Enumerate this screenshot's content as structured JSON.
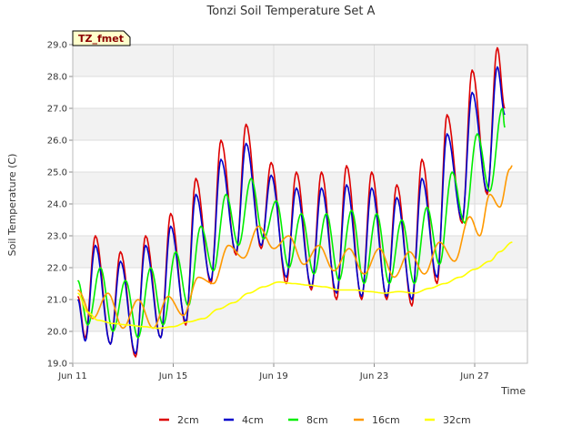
{
  "chart_data": {
    "type": "line",
    "title": "Tonzi Soil Temperature Set A",
    "xlabel": "Time",
    "ylabel": "Soil Temperature (C)",
    "site_badge": "TZ_fmet",
    "x_unit": "day of June",
    "xlim": [
      11,
      29.1
    ],
    "ylim": [
      19.0,
      29.0
    ],
    "x_ticks": [
      {
        "value": 11,
        "label": "Jun 11"
      },
      {
        "value": 15,
        "label": "Jun 15"
      },
      {
        "value": 19,
        "label": "Jun 19"
      },
      {
        "value": 23,
        "label": "Jun 23"
      },
      {
        "value": 27,
        "label": "Jun 27"
      }
    ],
    "y_ticks": [
      "19.0",
      "20.0",
      "21.0",
      "22.0",
      "23.0",
      "24.0",
      "25.0",
      "26.0",
      "27.0",
      "28.0",
      "29.0"
    ],
    "grid": true,
    "legend_position": "bottom",
    "series": [
      {
        "name": "2cm",
        "color": "#dd0000",
        "values": [
          [
            11.2,
            21.1
          ],
          [
            11.5,
            19.8
          ],
          [
            11.9,
            23.0
          ],
          [
            12.5,
            19.6
          ],
          [
            12.9,
            22.5
          ],
          [
            13.5,
            19.2
          ],
          [
            13.9,
            23.0
          ],
          [
            14.5,
            19.8
          ],
          [
            14.9,
            23.7
          ],
          [
            15.5,
            20.2
          ],
          [
            15.9,
            24.8
          ],
          [
            16.5,
            21.5
          ],
          [
            16.9,
            26.0
          ],
          [
            17.5,
            22.4
          ],
          [
            17.9,
            26.5
          ],
          [
            18.5,
            22.6
          ],
          [
            18.9,
            25.3
          ],
          [
            19.5,
            21.5
          ],
          [
            19.9,
            25.0
          ],
          [
            20.5,
            21.3
          ],
          [
            20.9,
            25.0
          ],
          [
            21.5,
            21.0
          ],
          [
            21.9,
            25.2
          ],
          [
            22.5,
            21.0
          ],
          [
            22.9,
            25.0
          ],
          [
            23.5,
            21.0
          ],
          [
            23.9,
            24.6
          ],
          [
            24.5,
            20.8
          ],
          [
            24.9,
            25.4
          ],
          [
            25.5,
            21.5
          ],
          [
            25.9,
            26.8
          ],
          [
            26.5,
            23.4
          ],
          [
            26.9,
            28.2
          ],
          [
            27.5,
            24.3
          ],
          [
            27.9,
            28.9
          ],
          [
            28.2,
            27.0
          ]
        ]
      },
      {
        "name": "4cm",
        "color": "#0000cc",
        "values": [
          [
            11.2,
            21.0
          ],
          [
            11.5,
            19.7
          ],
          [
            11.9,
            22.7
          ],
          [
            12.5,
            19.6
          ],
          [
            12.9,
            22.2
          ],
          [
            13.5,
            19.3
          ],
          [
            13.9,
            22.7
          ],
          [
            14.5,
            19.8
          ],
          [
            14.9,
            23.3
          ],
          [
            15.5,
            20.3
          ],
          [
            15.9,
            24.3
          ],
          [
            16.5,
            21.6
          ],
          [
            16.9,
            25.4
          ],
          [
            17.5,
            22.5
          ],
          [
            17.9,
            25.9
          ],
          [
            18.5,
            22.7
          ],
          [
            18.9,
            24.9
          ],
          [
            19.5,
            21.7
          ],
          [
            19.9,
            24.5
          ],
          [
            20.5,
            21.4
          ],
          [
            20.9,
            24.5
          ],
          [
            21.5,
            21.2
          ],
          [
            21.9,
            24.6
          ],
          [
            22.5,
            21.1
          ],
          [
            22.9,
            24.5
          ],
          [
            23.5,
            21.1
          ],
          [
            23.9,
            24.2
          ],
          [
            24.5,
            21.0
          ],
          [
            24.9,
            24.8
          ],
          [
            25.5,
            21.7
          ],
          [
            25.9,
            26.2
          ],
          [
            26.5,
            23.5
          ],
          [
            26.9,
            27.5
          ],
          [
            27.5,
            24.4
          ],
          [
            27.9,
            28.3
          ],
          [
            28.2,
            26.8
          ]
        ]
      },
      {
        "name": "8cm",
        "color": "#00ee00",
        "values": [
          [
            11.2,
            21.6
          ],
          [
            11.6,
            20.2
          ],
          [
            12.1,
            22.0
          ],
          [
            12.6,
            20.0
          ],
          [
            13.1,
            21.6
          ],
          [
            13.6,
            19.8
          ],
          [
            14.1,
            22.0
          ],
          [
            14.6,
            20.2
          ],
          [
            15.1,
            22.5
          ],
          [
            15.6,
            20.8
          ],
          [
            16.1,
            23.3
          ],
          [
            16.6,
            21.9
          ],
          [
            17.1,
            24.3
          ],
          [
            17.6,
            22.7
          ],
          [
            18.1,
            24.8
          ],
          [
            18.6,
            22.9
          ],
          [
            19.1,
            24.1
          ],
          [
            19.6,
            22.0
          ],
          [
            20.1,
            23.7
          ],
          [
            20.6,
            21.8
          ],
          [
            21.1,
            23.7
          ],
          [
            21.6,
            21.6
          ],
          [
            22.1,
            23.8
          ],
          [
            22.6,
            21.5
          ],
          [
            23.1,
            23.7
          ],
          [
            23.6,
            21.5
          ],
          [
            24.1,
            23.5
          ],
          [
            24.6,
            21.5
          ],
          [
            25.1,
            23.9
          ],
          [
            25.6,
            22.1
          ],
          [
            26.1,
            25.0
          ],
          [
            26.6,
            23.4
          ],
          [
            27.1,
            26.2
          ],
          [
            27.6,
            24.4
          ],
          [
            28.1,
            27.0
          ],
          [
            28.2,
            26.4
          ]
        ]
      },
      {
        "name": "16cm",
        "color": "#ff9900",
        "values": [
          [
            11.2,
            21.3
          ],
          [
            11.8,
            20.4
          ],
          [
            12.4,
            21.2
          ],
          [
            13.0,
            20.1
          ],
          [
            13.6,
            21.0
          ],
          [
            14.2,
            20.1
          ],
          [
            14.8,
            21.1
          ],
          [
            15.4,
            20.5
          ],
          [
            16.0,
            21.7
          ],
          [
            16.6,
            21.5
          ],
          [
            17.2,
            22.7
          ],
          [
            17.8,
            22.3
          ],
          [
            18.4,
            23.3
          ],
          [
            19.0,
            22.6
          ],
          [
            19.6,
            23.0
          ],
          [
            20.2,
            22.1
          ],
          [
            20.8,
            22.7
          ],
          [
            21.4,
            21.9
          ],
          [
            22.0,
            22.6
          ],
          [
            22.6,
            21.8
          ],
          [
            23.2,
            22.6
          ],
          [
            23.8,
            21.7
          ],
          [
            24.4,
            22.5
          ],
          [
            25.0,
            21.8
          ],
          [
            25.6,
            22.8
          ],
          [
            26.2,
            22.2
          ],
          [
            26.8,
            23.6
          ],
          [
            27.2,
            23.0
          ],
          [
            27.6,
            24.3
          ],
          [
            28.0,
            23.9
          ],
          [
            28.4,
            25.1
          ],
          [
            28.5,
            25.2
          ]
        ]
      },
      {
        "name": "32cm",
        "color": "#ffff00",
        "values": [
          [
            11.2,
            21.2
          ],
          [
            11.6,
            20.6
          ],
          [
            12.0,
            20.35
          ],
          [
            12.6,
            20.25
          ],
          [
            13.2,
            20.2
          ],
          [
            13.8,
            20.15
          ],
          [
            14.4,
            20.1
          ],
          [
            15.0,
            20.15
          ],
          [
            15.6,
            20.3
          ],
          [
            16.2,
            20.4
          ],
          [
            16.8,
            20.7
          ],
          [
            17.4,
            20.9
          ],
          [
            18.0,
            21.2
          ],
          [
            18.6,
            21.4
          ],
          [
            19.2,
            21.55
          ],
          [
            19.8,
            21.5
          ],
          [
            20.4,
            21.45
          ],
          [
            21.0,
            21.4
          ],
          [
            21.6,
            21.3
          ],
          [
            22.2,
            21.3
          ],
          [
            22.8,
            21.25
          ],
          [
            23.4,
            21.2
          ],
          [
            24.0,
            21.25
          ],
          [
            24.6,
            21.2
          ],
          [
            25.2,
            21.35
          ],
          [
            25.8,
            21.5
          ],
          [
            26.4,
            21.7
          ],
          [
            27.0,
            21.95
          ],
          [
            27.6,
            22.2
          ],
          [
            28.0,
            22.5
          ],
          [
            28.5,
            22.8
          ]
        ]
      }
    ]
  }
}
